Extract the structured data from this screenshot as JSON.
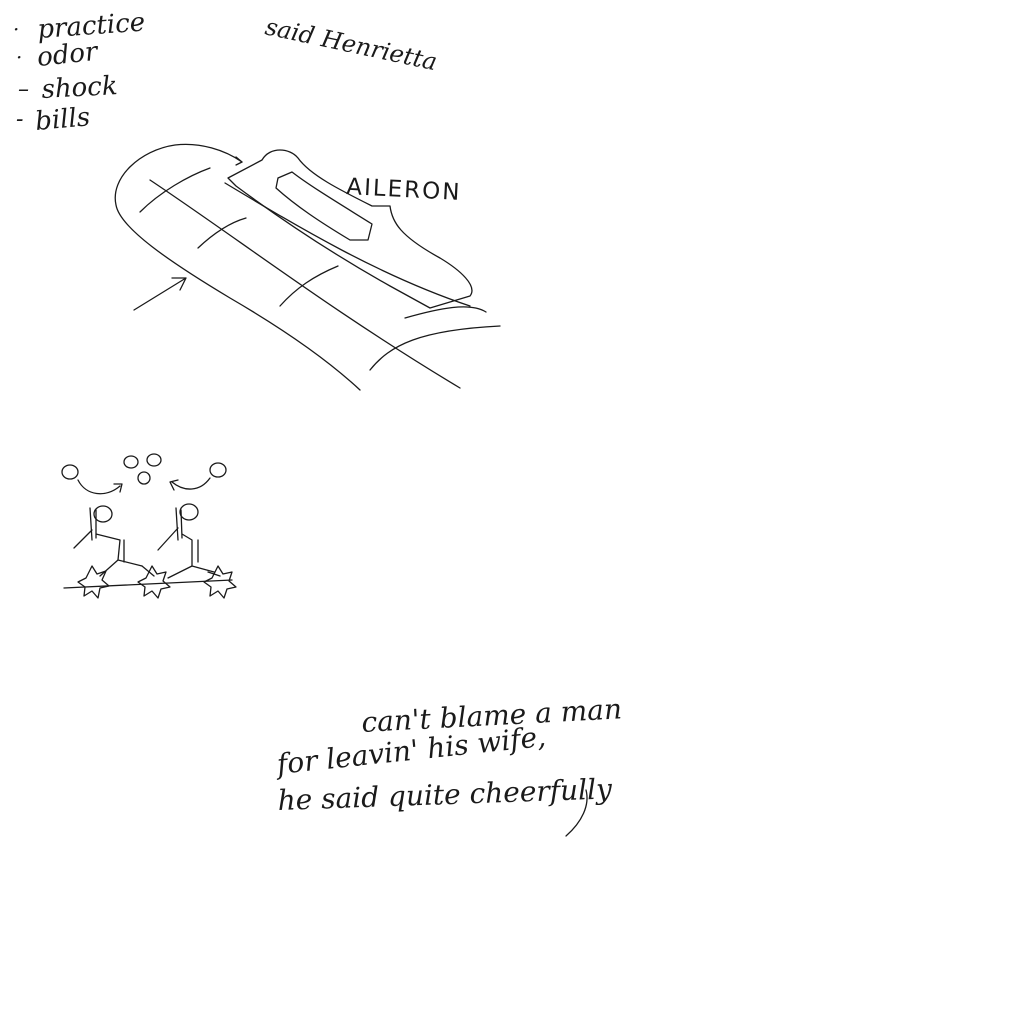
{
  "notes": {
    "list": [
      "practice",
      "odor",
      "shock",
      "bills"
    ],
    "bullets": [
      "·",
      "·",
      "–",
      "-"
    ],
    "speaker": "said Henrietta"
  },
  "wing": {
    "label": "AILERON"
  },
  "quote": {
    "lines": [
      "can't blame a man",
      "for leavin' his wife,",
      "he said quite cheerfully"
    ]
  },
  "ink_color": "#1a1a1a"
}
